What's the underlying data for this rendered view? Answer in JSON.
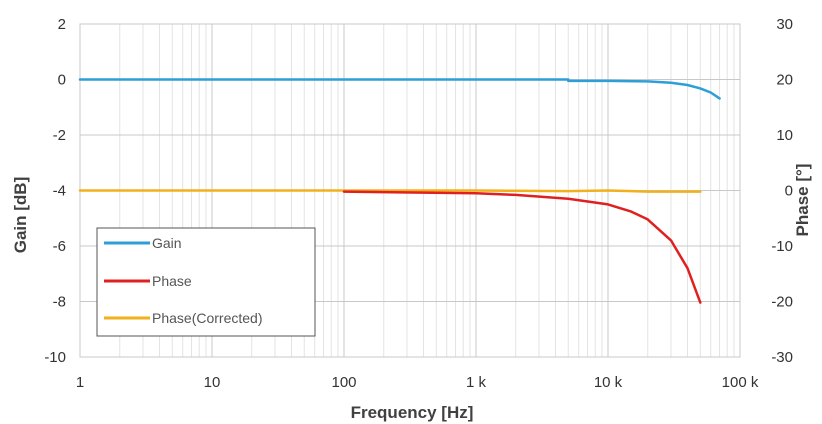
{
  "chart_data": {
    "type": "line",
    "xlabel": "Frequency [Hz]",
    "ylabel": "Gain [dB]",
    "y2label": "Phase [°]",
    "x_scale": "log",
    "xlim": [
      1,
      100000
    ],
    "ylim": [
      -10,
      2
    ],
    "y2lim": [
      -30,
      30
    ],
    "grid": true,
    "legend_position": "bottom-left",
    "x_ticks": [
      {
        "value": 1,
        "label": "1"
      },
      {
        "value": 10,
        "label": "10"
      },
      {
        "value": 100,
        "label": "100"
      },
      {
        "value": 1000,
        "label": "1 k"
      },
      {
        "value": 10000,
        "label": "10 k"
      },
      {
        "value": 100000,
        "label": "100 k"
      }
    ],
    "y_ticks": [
      {
        "value": 2,
        "label": "2"
      },
      {
        "value": 0,
        "label": "0"
      },
      {
        "value": -2,
        "label": "-2"
      },
      {
        "value": -4,
        "label": "-4"
      },
      {
        "value": -6,
        "label": "-6"
      },
      {
        "value": -8,
        "label": "-8"
      },
      {
        "value": -10,
        "label": "-10"
      }
    ],
    "y2_ticks": [
      {
        "value": 30,
        "label": "30"
      },
      {
        "value": 20,
        "label": "20"
      },
      {
        "value": 10,
        "label": "10"
      },
      {
        "value": 0,
        "label": "0"
      },
      {
        "value": -10,
        "label": "-10"
      },
      {
        "value": -20,
        "label": "-20"
      },
      {
        "value": -30,
        "label": "-30"
      }
    ],
    "series": [
      {
        "name": "Gain",
        "axis": "left",
        "color": "#2e9fd6",
        "x": [
          1,
          10,
          100,
          1000,
          5000,
          5001,
          10000,
          20000,
          30000,
          40000,
          50000,
          60000,
          70000
        ],
        "y": [
          0,
          0,
          0,
          0,
          0,
          -0.05,
          -0.05,
          -0.07,
          -0.12,
          -0.2,
          -0.32,
          -0.47,
          -0.68
        ]
      },
      {
        "name": "Phase",
        "axis": "right",
        "color": "#e02020",
        "x": [
          100,
          1000,
          2000,
          5000,
          10000,
          15000,
          20000,
          30000,
          40000,
          50000
        ],
        "y": [
          -0.2,
          -0.5,
          -0.8,
          -1.5,
          -2.5,
          -3.8,
          -5.2,
          -9,
          -14,
          -20.2
        ]
      },
      {
        "name": "Phase(Corrected)",
        "axis": "right",
        "color": "#f2b01c",
        "x": [
          1,
          10,
          100,
          1000,
          5000,
          10000,
          20000,
          50000
        ],
        "y": [
          0,
          0,
          0,
          0,
          -0.1,
          0,
          -0.2,
          -0.2
        ]
      }
    ]
  }
}
